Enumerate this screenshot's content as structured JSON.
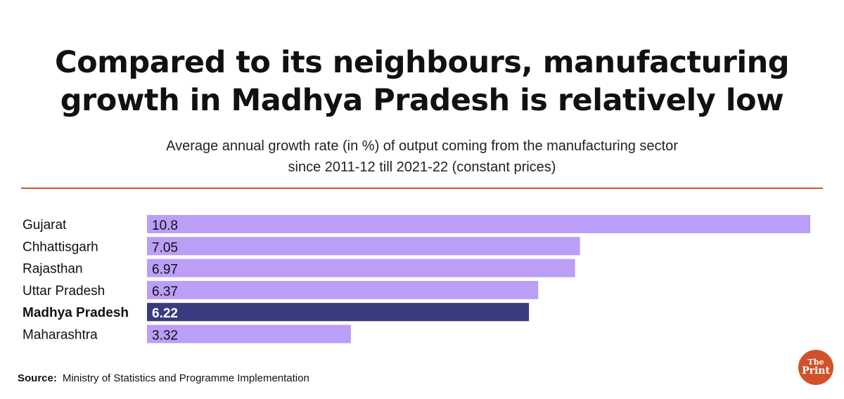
{
  "header": {
    "title_line1": "Compared to its neighbours, manufacturing",
    "title_line2": "growth in Madhya Pradesh is relatively low",
    "subtitle_line1": "Average annual growth rate (in %) of output coming from the manufacturing sector",
    "subtitle_line2": "since 2011-12 till 2021-22 (constant prices)"
  },
  "colors": {
    "bar": "#bb9ef7",
    "highlight": "#3a3a7e",
    "accent": "#d9532a",
    "logo": "#d2512b"
  },
  "chart_data": {
    "type": "bar",
    "orientation": "horizontal",
    "categories": [
      "Gujarat",
      "Chhattisgarh",
      "Rajasthan",
      "Uttar Pradesh",
      "Madhya Pradesh",
      "Maharashtra"
    ],
    "values": [
      10.8,
      7.05,
      6.97,
      6.37,
      6.22,
      3.32
    ],
    "labels": [
      "10.8",
      "7.05",
      "6.97",
      "6.37",
      "6.22",
      "3.32"
    ],
    "highlight": "Madhya Pradesh",
    "xlim": [
      0,
      10.8
    ],
    "grid": false
  },
  "footer": {
    "source_label": "Source:",
    "source_text": "Ministry of Statistics and Programme Implementation",
    "logo_line1": "The",
    "logo_line2": "Print"
  }
}
